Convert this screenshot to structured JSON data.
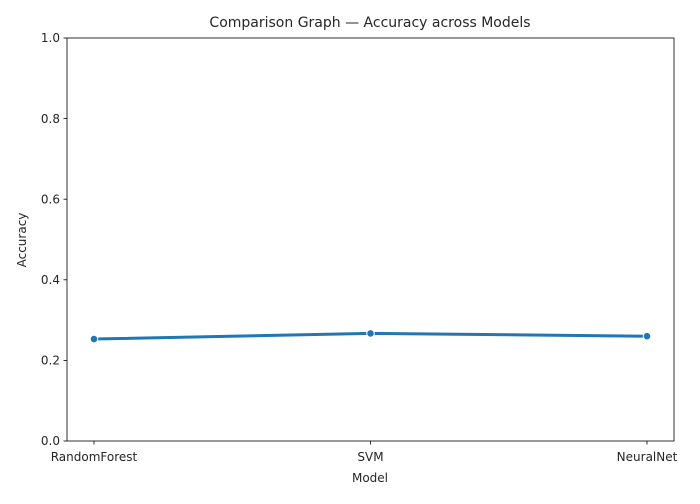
{
  "chart_data": {
    "type": "line",
    "title": "Comparison Graph — Accuracy across Models",
    "xlabel": "Model",
    "ylabel": "Accuracy",
    "categories": [
      "RandomForest",
      "SVM",
      "NeuralNet"
    ],
    "series": [
      {
        "values": [
          0.253,
          0.267,
          0.26
        ],
        "color": "#1f77b4"
      }
    ],
    "ylim": [
      0,
      1
    ],
    "yticks": [
      0.0,
      0.2,
      0.4,
      0.6,
      0.8,
      1.0
    ],
    "ytick_labels": [
      "0.0",
      "0.2",
      "0.4",
      "0.6",
      "0.8",
      "1.0"
    ],
    "grid": false,
    "legend": "none"
  }
}
